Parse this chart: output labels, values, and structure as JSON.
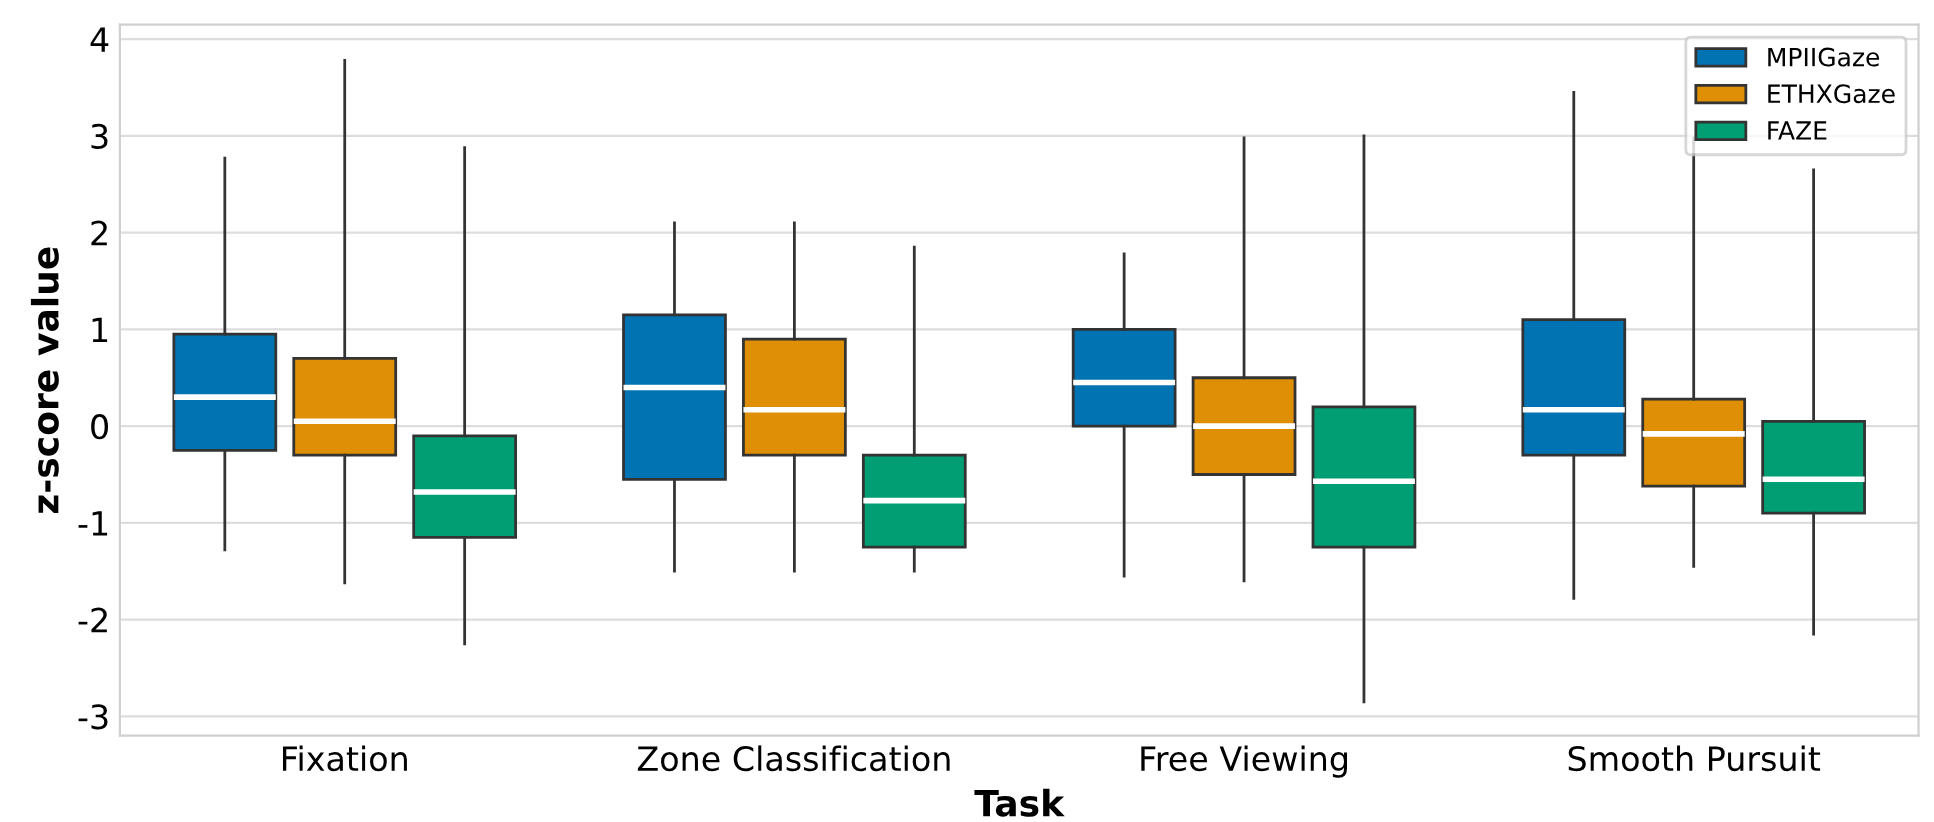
{
  "chart_data": {
    "type": "box",
    "xlabel": "Task",
    "ylabel": "z-score value",
    "categories": [
      "Fixation",
      "Zone Classification",
      "Free Viewing",
      "Smooth Pursuit"
    ],
    "series": [
      {
        "name": "MPIIGaze",
        "color": "#0173b2",
        "boxes": [
          {
            "low": -1.28,
            "q1": -0.25,
            "median": 0.3,
            "q3": 0.95,
            "high": 2.77
          },
          {
            "low": -1.5,
            "q1": -0.55,
            "median": 0.4,
            "q3": 1.15,
            "high": 2.1
          },
          {
            "low": -1.55,
            "q1": 0.0,
            "median": 0.45,
            "q3": 1.0,
            "high": 1.78
          },
          {
            "low": -1.78,
            "q1": -0.3,
            "median": 0.17,
            "q3": 1.1,
            "high": 3.45
          }
        ]
      },
      {
        "name": "ETHXGaze",
        "color": "#de8f05",
        "boxes": [
          {
            "low": -1.62,
            "q1": -0.3,
            "median": 0.05,
            "q3": 0.7,
            "high": 3.78
          },
          {
            "low": -1.5,
            "q1": -0.3,
            "median": 0.17,
            "q3": 0.9,
            "high": 2.1
          },
          {
            "low": -1.6,
            "q1": -0.5,
            "median": 0.0,
            "q3": 0.5,
            "high": 2.98
          },
          {
            "low": -1.45,
            "q1": -0.62,
            "median": -0.08,
            "q3": 0.28,
            "high": 2.98
          }
        ]
      },
      {
        "name": "FAZE",
        "color": "#029e73",
        "boxes": [
          {
            "low": -2.25,
            "q1": -1.15,
            "median": -0.68,
            "q3": -0.1,
            "high": 2.88
          },
          {
            "low": -1.5,
            "q1": -1.25,
            "median": -0.77,
            "q3": -0.3,
            "high": 1.85
          },
          {
            "low": -2.85,
            "q1": -1.25,
            "median": -0.57,
            "q3": 0.2,
            "high": 3.0
          },
          {
            "low": -2.15,
            "q1": -0.9,
            "median": -0.55,
            "q3": 0.05,
            "high": 2.65
          }
        ]
      }
    ],
    "ylim": [
      -3.2,
      4.15
    ],
    "yticks": [
      -3,
      -2,
      -1,
      0,
      1,
      2,
      3,
      4
    ],
    "grid": "y",
    "legend": "top right"
  }
}
